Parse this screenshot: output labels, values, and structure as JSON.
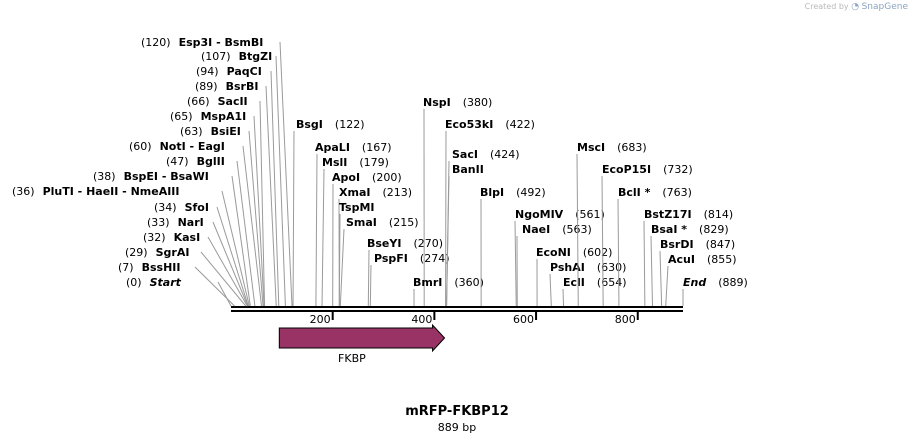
{
  "credit": {
    "prefix": "Created by",
    "brand": "SnapGene"
  },
  "plasmid": {
    "name": "mRFP-FKBP12",
    "length_label": "889 bp",
    "length": 889
  },
  "axis": {
    "ticks": [
      200,
      400,
      600,
      800
    ]
  },
  "features": [
    {
      "name": "FKBP",
      "start": 95,
      "end": 420,
      "color": "#993366"
    }
  ],
  "sites": [
    {
      "pos_label": "(120)",
      "name": "Esp3I",
      "alt": "BsmBI",
      "pos": 120
    },
    {
      "pos_label": "(107)",
      "name": "BtgZI",
      "pos": 107
    },
    {
      "pos_label": "(94)",
      "name": "PaqCI",
      "pos": 94
    },
    {
      "pos_label": "(89)",
      "name": "BsrBI",
      "pos": 89
    },
    {
      "pos_label": "(66)",
      "name": "SacII",
      "pos": 66
    },
    {
      "pos_label": "(65)",
      "name": "MspA1I",
      "pos": 65
    },
    {
      "pos_label": "(63)",
      "name": "BsiEI",
      "pos": 63
    },
    {
      "pos_label": "(60)",
      "name": "NotI",
      "alt": "EagI",
      "pos": 60
    },
    {
      "pos_label": "(47)",
      "name": "BglII",
      "pos": 47
    },
    {
      "pos_label": "(38)",
      "name": "BspEI",
      "alt": "BsaWI",
      "pos": 38
    },
    {
      "pos_label": "(36)",
      "name": "PluTI",
      "alt": "HaeII",
      "alt2": "NmeAIII",
      "pos": 36
    },
    {
      "pos_label": "(34)",
      "name": "SfoI",
      "pos": 34
    },
    {
      "pos_label": "(33)",
      "name": "NarI",
      "pos": 33
    },
    {
      "pos_label": "(32)",
      "name": "KasI",
      "pos": 32
    },
    {
      "pos_label": "(29)",
      "name": "SgrAI",
      "pos": 29
    },
    {
      "pos_label": "(7)",
      "name": "BssHII",
      "pos": 7
    },
    {
      "pos_label": "(0)",
      "name": "Start",
      "pos": 0,
      "italic": true
    },
    {
      "name": "BsgI",
      "pos_label": "(122)",
      "pos": 122
    },
    {
      "name": "ApaLI",
      "pos_label": "(167)",
      "pos": 167
    },
    {
      "name": "MslI",
      "pos_label": "(179)",
      "pos": 179
    },
    {
      "name": "ApoI",
      "pos_label": "(200)",
      "pos": 200
    },
    {
      "name": "XmaI",
      "pos_label": "(213)",
      "pos": 213
    },
    {
      "name": "TspMI",
      "pos_label": "",
      "pos": 213
    },
    {
      "name": "SmaI",
      "pos_label": "(215)",
      "pos": 215
    },
    {
      "name": "BseYI",
      "pos_label": "(270)",
      "pos": 270
    },
    {
      "name": "PspFI",
      "pos_label": "(274)",
      "pos": 274
    },
    {
      "name": "NspI",
      "pos_label": "(380)",
      "pos": 380
    },
    {
      "name": "Eco53kI",
      "pos_label": "(422)",
      "pos": 422
    },
    {
      "name": "SacI",
      "pos_label": "(424)",
      "pos": 424
    },
    {
      "name": "BanII",
      "pos_label": "",
      "pos": 424
    },
    {
      "name": "BmrI",
      "pos_label": "(360)",
      "pos": 360
    },
    {
      "name": "BlpI",
      "pos_label": "(492)",
      "pos": 492
    },
    {
      "name": "NgoMIV",
      "pos_label": "(561)",
      "pos": 561
    },
    {
      "name": "NaeI",
      "pos_label": "(563)",
      "pos": 563
    },
    {
      "name": "EcoNI",
      "pos_label": "(602)",
      "pos": 602
    },
    {
      "name": "PshAI",
      "pos_label": "(630)",
      "pos": 630
    },
    {
      "name": "EclI",
      "pos_label": "(654)",
      "pos": 654
    },
    {
      "name": "MscI",
      "pos_label": "(683)",
      "pos": 683
    },
    {
      "name": "EcoP15I",
      "pos_label": "(732)",
      "pos": 732
    },
    {
      "name": "BclI *",
      "pos_label": "(763)",
      "pos": 763
    },
    {
      "name": "BstZ17I",
      "pos_label": "(814)",
      "pos": 814
    },
    {
      "name": "BsaI *",
      "pos_label": "(829)",
      "pos": 829
    },
    {
      "name": "BsrDI",
      "pos_label": "(847)",
      "pos": 847
    },
    {
      "name": "AcuI",
      "pos_label": "(855)",
      "pos": 855
    },
    {
      "name": "End",
      "pos_label": "(889)",
      "pos": 889,
      "italic": true
    }
  ]
}
